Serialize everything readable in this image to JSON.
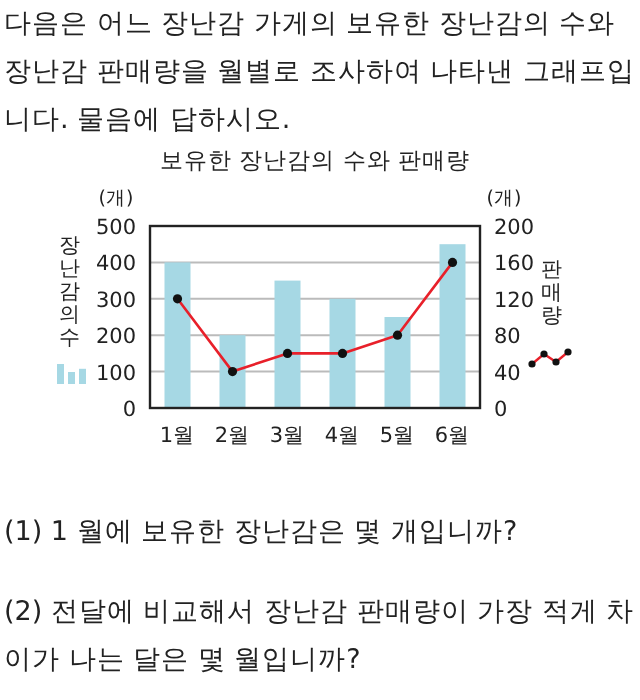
{
  "chart_data": {
    "type": "bar",
    "title": "보유한 장난감의 수와 판매량",
    "ylabel": "장난감의 수",
    "y2label": "판매량",
    "categories": [
      "1월",
      "2월",
      "3월",
      "4월",
      "5월",
      "6월"
    ],
    "series": [
      {
        "color": "#a6d8e4",
        "values": [
          400,
          200,
          350,
          300,
          250,
          450
        ]
      },
      {
        "type": "line",
        "axis": "y2",
        "color": "#e8202a",
        "values": [
          120,
          40,
          60,
          60,
          80,
          160
        ]
      }
    ],
    "ylim": [
      0,
      500
    ],
    "yticks": [
      0,
      100,
      200,
      300,
      400,
      500
    ],
    "y2lim": [
      0,
      200
    ],
    "y2ticks": [
      0,
      40,
      80,
      120,
      160,
      200
    ],
    "grid": "y",
    "marker": "circle",
    "annotations": [
      "다음은 어느 장난감 가게의 보유한 장난감의 수와 장난감 판매량을 월별로 조사하여 나타낸 그래프입니다. 물음에 답하시오.",
      "(개)",
      "(개)",
      "(1) 1 월에 보유한 장난감은 몇 개입니까?",
      "(2) 전달에 비교해서 장난감 판매량이 가장 적게 차이가 나는 달은 몇 월입니까?"
    ]
  }
}
